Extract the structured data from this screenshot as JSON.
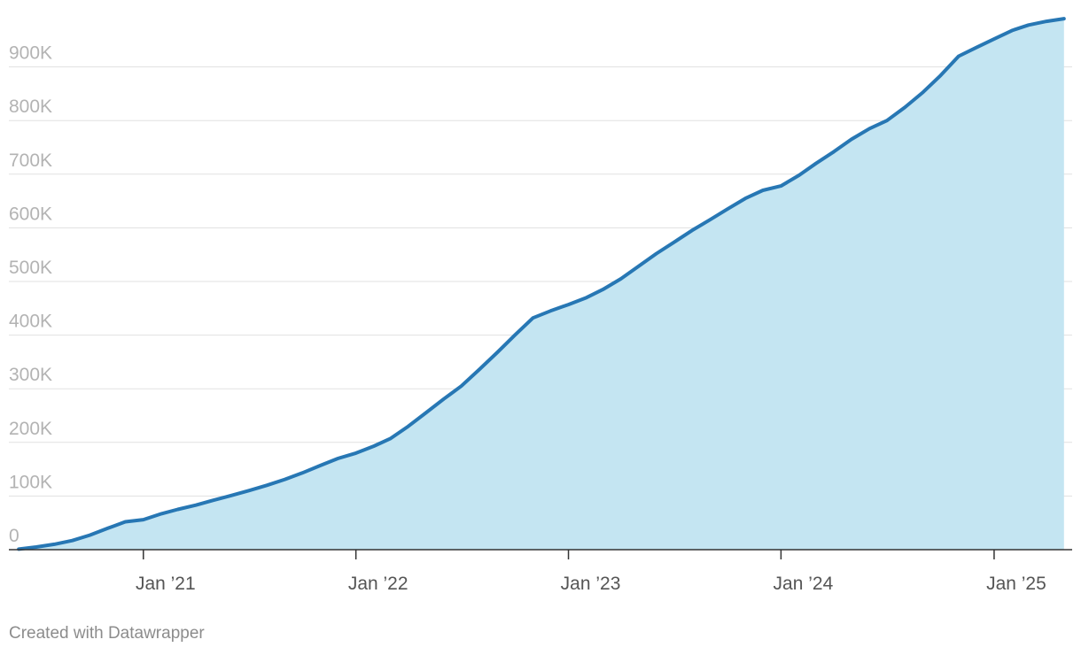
{
  "chart_data": {
    "type": "area",
    "title": "",
    "xlabel": "",
    "ylabel": "",
    "x_axis": {
      "type": "date",
      "range": [
        "2020-05-15",
        "2025-05-15"
      ]
    },
    "ylim": [
      0,
      1000000
    ],
    "grid": true,
    "legend": "none",
    "colors": {
      "line": "#2777b4",
      "fill": "#c4e5f2",
      "grid": "#e1e1e1",
      "axis": "#333333"
    },
    "y_ticks": [
      {
        "value": 0,
        "label": "0"
      },
      {
        "value": 100000,
        "label": "100K"
      },
      {
        "value": 200000,
        "label": "200K"
      },
      {
        "value": 300000,
        "label": "300K"
      },
      {
        "value": 400000,
        "label": "400K"
      },
      {
        "value": 500000,
        "label": "500K"
      },
      {
        "value": 600000,
        "label": "600K"
      },
      {
        "value": 700000,
        "label": "700K"
      },
      {
        "value": 800000,
        "label": "800K"
      },
      {
        "value": 900000,
        "label": "900K"
      }
    ],
    "x_ticks": [
      {
        "value": "2021-01-01",
        "label": "Jan ’21"
      },
      {
        "value": "2022-01-01",
        "label": "Jan ’22"
      },
      {
        "value": "2023-01-01",
        "label": "Jan ’23"
      },
      {
        "value": "2024-01-01",
        "label": "Jan ’24"
      },
      {
        "value": "2025-01-01",
        "label": "Jan ’25"
      }
    ],
    "series": [
      {
        "x": [
          "2020-06-01",
          "2020-07-01",
          "2020-08-01",
          "2020-09-01",
          "2020-10-01",
          "2020-11-01",
          "2020-12-01",
          "2021-01-01",
          "2021-02-01",
          "2021-03-01",
          "2021-04-01",
          "2021-05-01",
          "2021-06-01",
          "2021-07-01",
          "2021-08-01",
          "2021-09-01",
          "2021-10-01",
          "2021-11-01",
          "2021-12-01",
          "2022-01-01",
          "2022-02-01",
          "2022-03-01",
          "2022-04-01",
          "2022-05-01",
          "2022-06-01",
          "2022-07-01",
          "2022-08-01",
          "2022-09-01",
          "2022-10-01",
          "2022-11-01",
          "2022-12-01",
          "2023-01-01",
          "2023-02-01",
          "2023-03-01",
          "2023-04-01",
          "2023-05-01",
          "2023-06-01",
          "2023-07-01",
          "2023-08-01",
          "2023-09-01",
          "2023-10-01",
          "2023-11-01",
          "2023-12-01",
          "2024-01-01",
          "2024-02-01",
          "2024-03-01",
          "2024-04-01",
          "2024-05-01",
          "2024-06-01",
          "2024-07-01",
          "2024-08-01",
          "2024-09-01",
          "2024-10-01",
          "2024-11-01",
          "2024-12-01",
          "2025-01-01",
          "2025-02-01",
          "2025-03-01",
          "2025-04-01",
          "2025-05-01"
        ],
        "values": [
          1000,
          5000,
          10000,
          17000,
          27000,
          40000,
          52000,
          56000,
          67000,
          75000,
          83000,
          92000,
          101000,
          110000,
          120000,
          131000,
          143000,
          157000,
          170000,
          180000,
          193000,
          207000,
          230000,
          255000,
          281000,
          305000,
          336000,
          368000,
          400000,
          432000,
          445000,
          457000,
          470000,
          485000,
          505000,
          528000,
          552000,
          573000,
          595000,
          615000,
          635000,
          655000,
          670000,
          678000,
          698000,
          720000,
          742000,
          765000,
          785000,
          800000,
          825000,
          853000,
          884000,
          920000,
          936000,
          952000,
          968000,
          978000,
          985000,
          990000
        ]
      }
    ]
  },
  "footer": {
    "credit": "Created with Datawrapper"
  }
}
